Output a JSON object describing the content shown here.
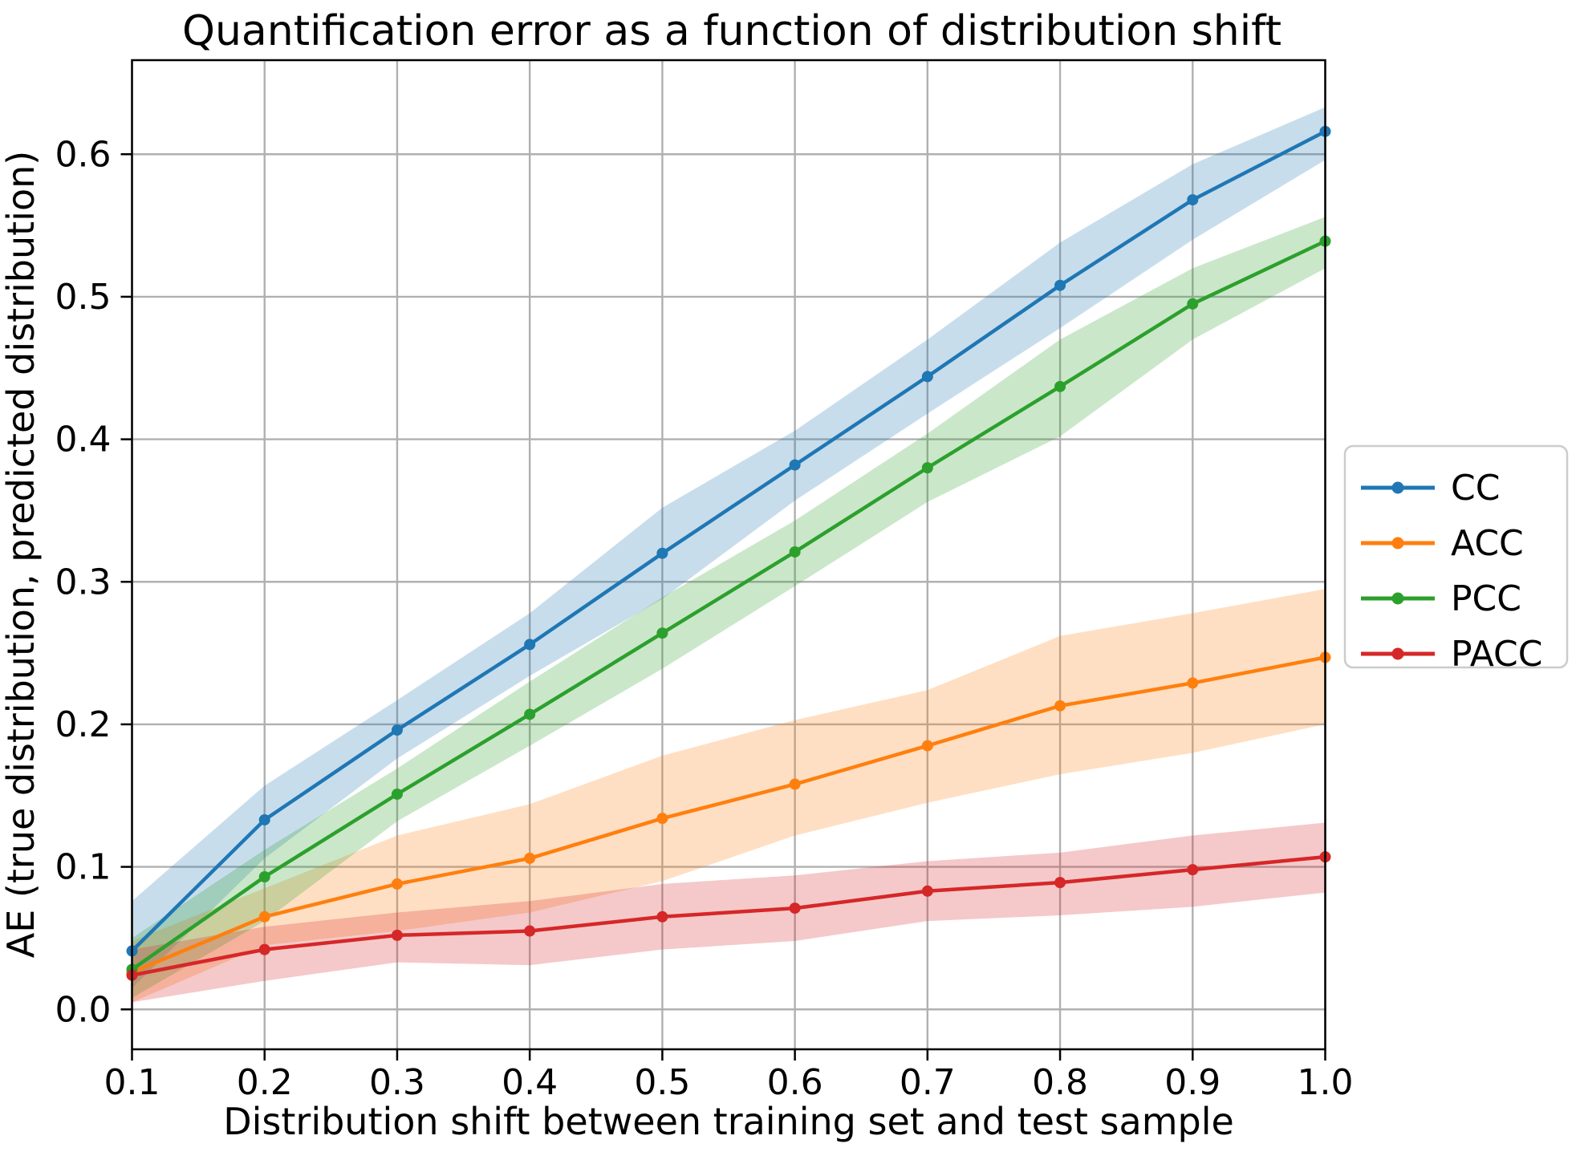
{
  "figure": {
    "title": "Quantification error as a function of distribution shift",
    "xlabel": "Distribution shift between training set and test sample",
    "ylabel": "AE (true distribution, predicted distribution)"
  },
  "chart_data": {
    "type": "line",
    "title": "Quantification error as a function of distribution shift",
    "xlabel": "Distribution shift between training set and test sample",
    "ylabel": "AE (true distribution, predicted distribution)",
    "x": [
      0.1,
      0.2,
      0.3,
      0.4,
      0.5,
      0.6,
      0.7,
      0.8,
      0.9,
      1.0
    ],
    "xticks": [
      0.1,
      0.2,
      0.3,
      0.4,
      0.5,
      0.6,
      0.7,
      0.8,
      0.9,
      1.0
    ],
    "yticks": [
      0.0,
      0.1,
      0.2,
      0.3,
      0.4,
      0.5,
      0.6
    ],
    "xlim": [
      0.1,
      1.0
    ],
    "ylim": [
      -0.028,
      0.666
    ],
    "grid": true,
    "grid_color": "#b0b0b0",
    "band_alpha": 0.25,
    "legend_position": "right-outside",
    "series": [
      {
        "name": "CC",
        "color": "#1f77b4",
        "values": [
          0.041,
          0.133,
          0.196,
          0.256,
          0.32,
          0.382,
          0.444,
          0.508,
          0.568,
          0.616
        ],
        "band_lower": [
          0.015,
          0.106,
          0.176,
          0.234,
          0.288,
          0.357,
          0.418,
          0.478,
          0.54,
          0.596
        ],
        "band_upper": [
          0.076,
          0.157,
          0.217,
          0.278,
          0.352,
          0.406,
          0.47,
          0.538,
          0.593,
          0.633
        ]
      },
      {
        "name": "ACC",
        "color": "#ff7f0e",
        "values": [
          0.026,
          0.065,
          0.088,
          0.106,
          0.134,
          0.158,
          0.185,
          0.213,
          0.229,
          0.247
        ],
        "band_lower": [
          0.005,
          0.045,
          0.055,
          0.068,
          0.09,
          0.122,
          0.145,
          0.165,
          0.18,
          0.2
        ],
        "band_upper": [
          0.048,
          0.085,
          0.122,
          0.144,
          0.178,
          0.203,
          0.224,
          0.262,
          0.278,
          0.295
        ]
      },
      {
        "name": "PCC",
        "color": "#2ca02c",
        "values": [
          0.028,
          0.093,
          0.151,
          0.207,
          0.264,
          0.321,
          0.38,
          0.437,
          0.495,
          0.539
        ],
        "band_lower": [
          0.008,
          0.062,
          0.132,
          0.185,
          0.239,
          0.297,
          0.356,
          0.402,
          0.47,
          0.52
        ],
        "band_upper": [
          0.05,
          0.112,
          0.169,
          0.23,
          0.289,
          0.343,
          0.404,
          0.47,
          0.52,
          0.556
        ]
      },
      {
        "name": "PACC",
        "color": "#d62728",
        "values": [
          0.024,
          0.042,
          0.052,
          0.055,
          0.065,
          0.071,
          0.083,
          0.089,
          0.098,
          0.107
        ],
        "band_lower": [
          0.005,
          0.02,
          0.033,
          0.031,
          0.042,
          0.048,
          0.062,
          0.066,
          0.072,
          0.082
        ],
        "band_upper": [
          0.042,
          0.058,
          0.068,
          0.076,
          0.088,
          0.094,
          0.104,
          0.11,
          0.122,
          0.131
        ]
      }
    ]
  },
  "legend": {
    "entries": [
      "CC",
      "ACC",
      "PCC",
      "PACC"
    ]
  },
  "style": {
    "spine_color": "#000000",
    "background": "#ffffff",
    "legend_border": "#cccccc"
  }
}
